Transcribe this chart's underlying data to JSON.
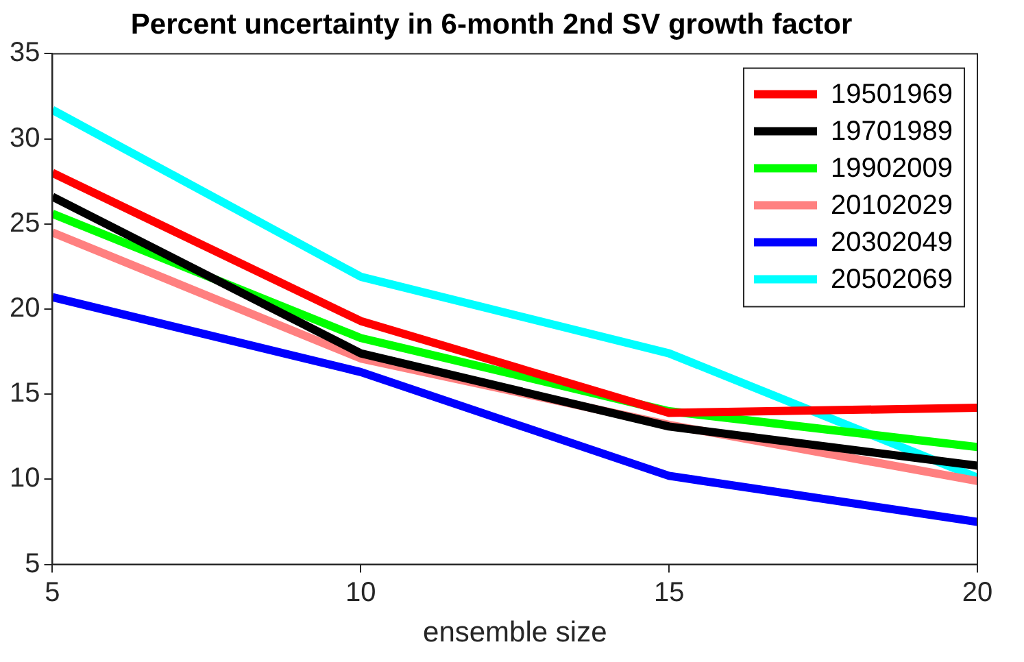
{
  "chart_data": {
    "type": "line",
    "title": "Percent uncertainty in 6-month 2nd SV growth factor",
    "xlabel": "ensemble size",
    "x": [
      5,
      10,
      15,
      20
    ],
    "xlim": [
      5,
      20
    ],
    "xticks": [
      5,
      10,
      15,
      20
    ],
    "ylim": [
      5,
      35
    ],
    "yticks": [
      5,
      10,
      15,
      20,
      25,
      30,
      35
    ],
    "grid": false,
    "legend": "top right",
    "marker": "none",
    "line_style": "solid",
    "series": [
      {
        "name": "19501969",
        "color": "#ff0000",
        "values": [
          28.0,
          19.3,
          13.9,
          14.2
        ]
      },
      {
        "name": "19701989",
        "color": "#000000",
        "values": [
          26.6,
          17.4,
          13.1,
          10.8
        ]
      },
      {
        "name": "19902009",
        "color": "#00ff00",
        "values": [
          25.6,
          18.3,
          14.0,
          11.9
        ]
      },
      {
        "name": "20102029",
        "color": "#ff8080",
        "values": [
          24.5,
          17.1,
          13.2,
          9.9
        ]
      },
      {
        "name": "20302049",
        "color": "#0000ff",
        "values": [
          20.7,
          16.3,
          10.2,
          7.5
        ]
      },
      {
        "name": "20502069",
        "color": "#00ffff",
        "values": [
          31.7,
          21.9,
          17.4,
          10.1
        ]
      }
    ]
  }
}
